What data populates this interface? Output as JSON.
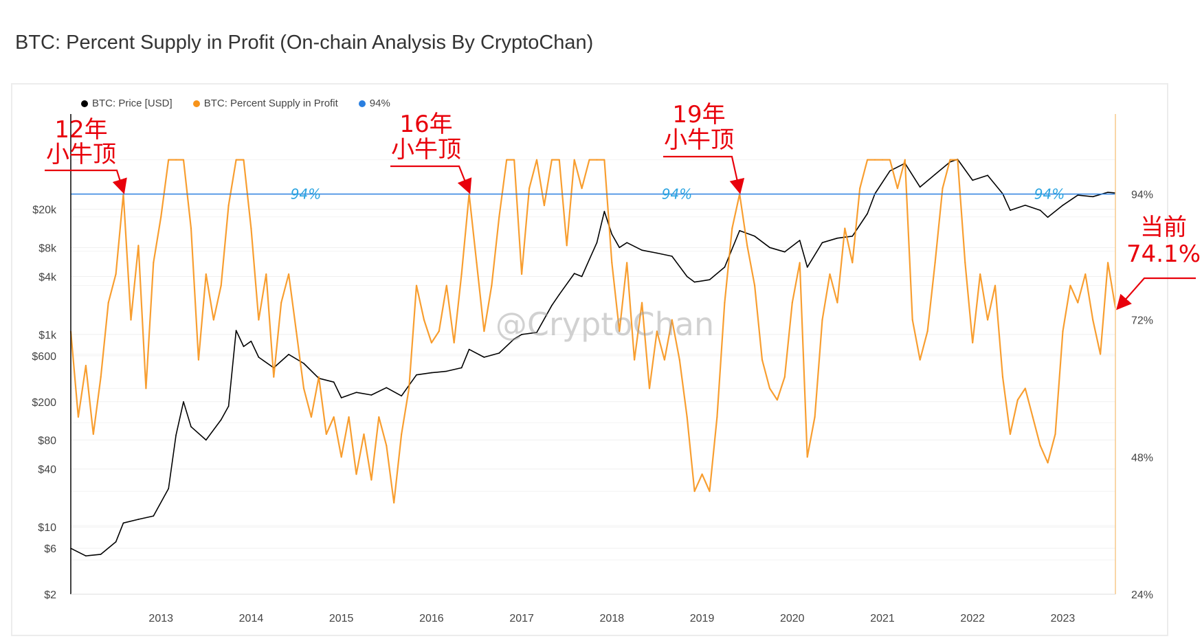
{
  "title": "BTC: Percent Supply in Profit (On-chain Analysis By CryptoChan)",
  "watermark": "@CryptoChan",
  "colors": {
    "price": "#000000",
    "profit": "#f7931a",
    "reference": "#2a7fe0",
    "annotation": "#e8000b"
  },
  "chart_data": {
    "type": "line",
    "title": "BTC: Percent Supply in Profit (On-chain Analysis By CryptoChan)",
    "legend": {
      "placement": "top-left",
      "entries": [
        "BTC: Price [USD]",
        "BTC: Percent Supply in Profit",
        "94%"
      ]
    },
    "grid": true,
    "x_ticks": [
      "2013",
      "2014",
      "2015",
      "2016",
      "2017",
      "2018",
      "2019",
      "2020",
      "2021",
      "2022",
      "2023"
    ],
    "xlim": [
      "2012-01",
      "2023-08"
    ],
    "y_left": {
      "scale": "log",
      "ticks": [
        2,
        6,
        10,
        40,
        80,
        200,
        600,
        1000,
        4000,
        8000,
        20000
      ],
      "tick_labels": [
        "$2",
        "$6",
        "$10",
        "$40",
        "$80",
        "$200",
        "$600",
        "$1k",
        "$4k",
        "$8k",
        "$20k"
      ],
      "range": [
        2,
        195000
      ]
    },
    "y_right": {
      "scale": "linear",
      "ticks": [
        24,
        48,
        72,
        94
      ],
      "tick_labels": [
        "24%",
        "48%",
        "72%",
        "94%"
      ],
      "range": [
        24,
        108
      ]
    },
    "reference_line": {
      "value": 94,
      "label": "94%",
      "axis": "right"
    },
    "series": [
      {
        "name": "BTC: Price [USD]",
        "axis": "left",
        "color": "#000000",
        "x": [
          "2012-01",
          "2012-03",
          "2012-05",
          "2012-07",
          "2012-08",
          "2012-10",
          "2012-12",
          "2013-02",
          "2013-03",
          "2013-04",
          "2013-05",
          "2013-07",
          "2013-09",
          "2013-10",
          "2013-11",
          "2013-12",
          "2014-01",
          "2014-02",
          "2014-04",
          "2014-06",
          "2014-08",
          "2014-10",
          "2014-12",
          "2015-01",
          "2015-03",
          "2015-05",
          "2015-07",
          "2015-09",
          "2015-11",
          "2016-01",
          "2016-03",
          "2016-05",
          "2016-06",
          "2016-08",
          "2016-10",
          "2016-12",
          "2017-01",
          "2017-03",
          "2017-05",
          "2017-06",
          "2017-08",
          "2017-09",
          "2017-10",
          "2017-11",
          "2017-12",
          "2018-01",
          "2018-02",
          "2018-03",
          "2018-05",
          "2018-07",
          "2018-09",
          "2018-11",
          "2018-12",
          "2019-02",
          "2019-04",
          "2019-06",
          "2019-08",
          "2019-10",
          "2019-12",
          "2020-02",
          "2020-03",
          "2020-05",
          "2020-07",
          "2020-09",
          "2020-11",
          "2020-12",
          "2021-02",
          "2021-04",
          "2021-06",
          "2021-08",
          "2021-10",
          "2021-11",
          "2022-01",
          "2022-03",
          "2022-05",
          "2022-06",
          "2022-08",
          "2022-10",
          "2022-11",
          "2023-01",
          "2023-03",
          "2023-05",
          "2023-07",
          "2023-08"
        ],
        "values": [
          6,
          5,
          5.2,
          7,
          11,
          12,
          13,
          25,
          90,
          200,
          110,
          80,
          130,
          180,
          1100,
          750,
          850,
          580,
          450,
          620,
          500,
          350,
          320,
          220,
          250,
          235,
          280,
          230,
          380,
          400,
          415,
          450,
          700,
          580,
          640,
          900,
          1000,
          1050,
          2000,
          2600,
          4300,
          4000,
          6000,
          9000,
          19000,
          11000,
          8000,
          9000,
          7500,
          7000,
          6500,
          4000,
          3500,
          3700,
          5000,
          12000,
          10500,
          8000,
          7200,
          9500,
          5000,
          9000,
          10000,
          10500,
          18000,
          29000,
          50000,
          60000,
          34000,
          46000,
          62000,
          66000,
          40000,
          45000,
          29000,
          19500,
          22000,
          19500,
          16500,
          22000,
          28000,
          27000,
          30000,
          29500
        ]
      },
      {
        "name": "BTC: Percent Supply in Profit",
        "axis": "right",
        "color": "#f7931a",
        "x": [
          "2012-01",
          "2012-02",
          "2012-03",
          "2012-04",
          "2012-05",
          "2012-06",
          "2012-07",
          "2012-08",
          "2012-09",
          "2012-10",
          "2012-11",
          "2012-12",
          "2013-01",
          "2013-02",
          "2013-03",
          "2013-04",
          "2013-05",
          "2013-06",
          "2013-07",
          "2013-08",
          "2013-09",
          "2013-10",
          "2013-11",
          "2013-12",
          "2014-01",
          "2014-02",
          "2014-03",
          "2014-04",
          "2014-05",
          "2014-06",
          "2014-07",
          "2014-08",
          "2014-09",
          "2014-10",
          "2014-11",
          "2014-12",
          "2015-01",
          "2015-02",
          "2015-03",
          "2015-04",
          "2015-05",
          "2015-06",
          "2015-07",
          "2015-08",
          "2015-09",
          "2015-10",
          "2015-11",
          "2015-12",
          "2016-01",
          "2016-02",
          "2016-03",
          "2016-04",
          "2016-05",
          "2016-06",
          "2016-07",
          "2016-08",
          "2016-09",
          "2016-10",
          "2016-11",
          "2016-12",
          "2017-01",
          "2017-02",
          "2017-03",
          "2017-04",
          "2017-05",
          "2017-06",
          "2017-07",
          "2017-08",
          "2017-09",
          "2017-10",
          "2017-11",
          "2017-12",
          "2018-01",
          "2018-02",
          "2018-03",
          "2018-04",
          "2018-05",
          "2018-06",
          "2018-07",
          "2018-08",
          "2018-09",
          "2018-10",
          "2018-11",
          "2018-12",
          "2019-01",
          "2019-02",
          "2019-03",
          "2019-04",
          "2019-05",
          "2019-06",
          "2019-07",
          "2019-08",
          "2019-09",
          "2019-10",
          "2019-11",
          "2019-12",
          "2020-01",
          "2020-02",
          "2020-03",
          "2020-04",
          "2020-05",
          "2020-06",
          "2020-07",
          "2020-08",
          "2020-09",
          "2020-10",
          "2020-11",
          "2020-12",
          "2021-01",
          "2021-02",
          "2021-03",
          "2021-04",
          "2021-05",
          "2021-06",
          "2021-07",
          "2021-08",
          "2021-09",
          "2021-10",
          "2021-11",
          "2021-12",
          "2022-01",
          "2022-02",
          "2022-03",
          "2022-04",
          "2022-05",
          "2022-06",
          "2022-07",
          "2022-08",
          "2022-09",
          "2022-10",
          "2022-11",
          "2022-12",
          "2023-01",
          "2023-02",
          "2023-03",
          "2023-04",
          "2023-05",
          "2023-06",
          "2023-07",
          "2023-08"
        ],
        "values": [
          70,
          55,
          64,
          52,
          62,
          75,
          80,
          94,
          72,
          85,
          60,
          82,
          90,
          100,
          100,
          100,
          88,
          65,
          80,
          72,
          78,
          92,
          100,
          100,
          88,
          72,
          80,
          62,
          75,
          80,
          70,
          60,
          55,
          62,
          52,
          55,
          48,
          55,
          45,
          52,
          44,
          55,
          50,
          40,
          52,
          60,
          78,
          72,
          68,
          70,
          78,
          68,
          80,
          94,
          82,
          70,
          78,
          90,
          100,
          100,
          80,
          95,
          100,
          92,
          100,
          100,
          85,
          100,
          95,
          100,
          100,
          100,
          82,
          70,
          82,
          65,
          75,
          60,
          70,
          65,
          72,
          65,
          55,
          42,
          45,
          42,
          55,
          75,
          88,
          94,
          85,
          78,
          65,
          60,
          58,
          62,
          75,
          82,
          48,
          55,
          72,
          80,
          75,
          88,
          82,
          95,
          100,
          100,
          100,
          100,
          95,
          100,
          72,
          65,
          70,
          82,
          95,
          100,
          100,
          82,
          68,
          80,
          72,
          78,
          62,
          52,
          58,
          60,
          55,
          50,
          47,
          52,
          70,
          78,
          75,
          80,
          72,
          66,
          82,
          74.1
        ]
      }
    ],
    "annotations": [
      {
        "line1": "12年",
        "line2": "小牛顶",
        "x": "2012-08",
        "y": 94
      },
      {
        "line1": "16年",
        "line2": "小牛顶",
        "x": "2016-06",
        "y": 94
      },
      {
        "line1": "19年",
        "line2": "小牛顶",
        "x": "2019-06",
        "y": 94
      },
      {
        "line1": "当前",
        "line2": "74.1%",
        "x": "2023-08",
        "y": 74.1
      }
    ]
  }
}
